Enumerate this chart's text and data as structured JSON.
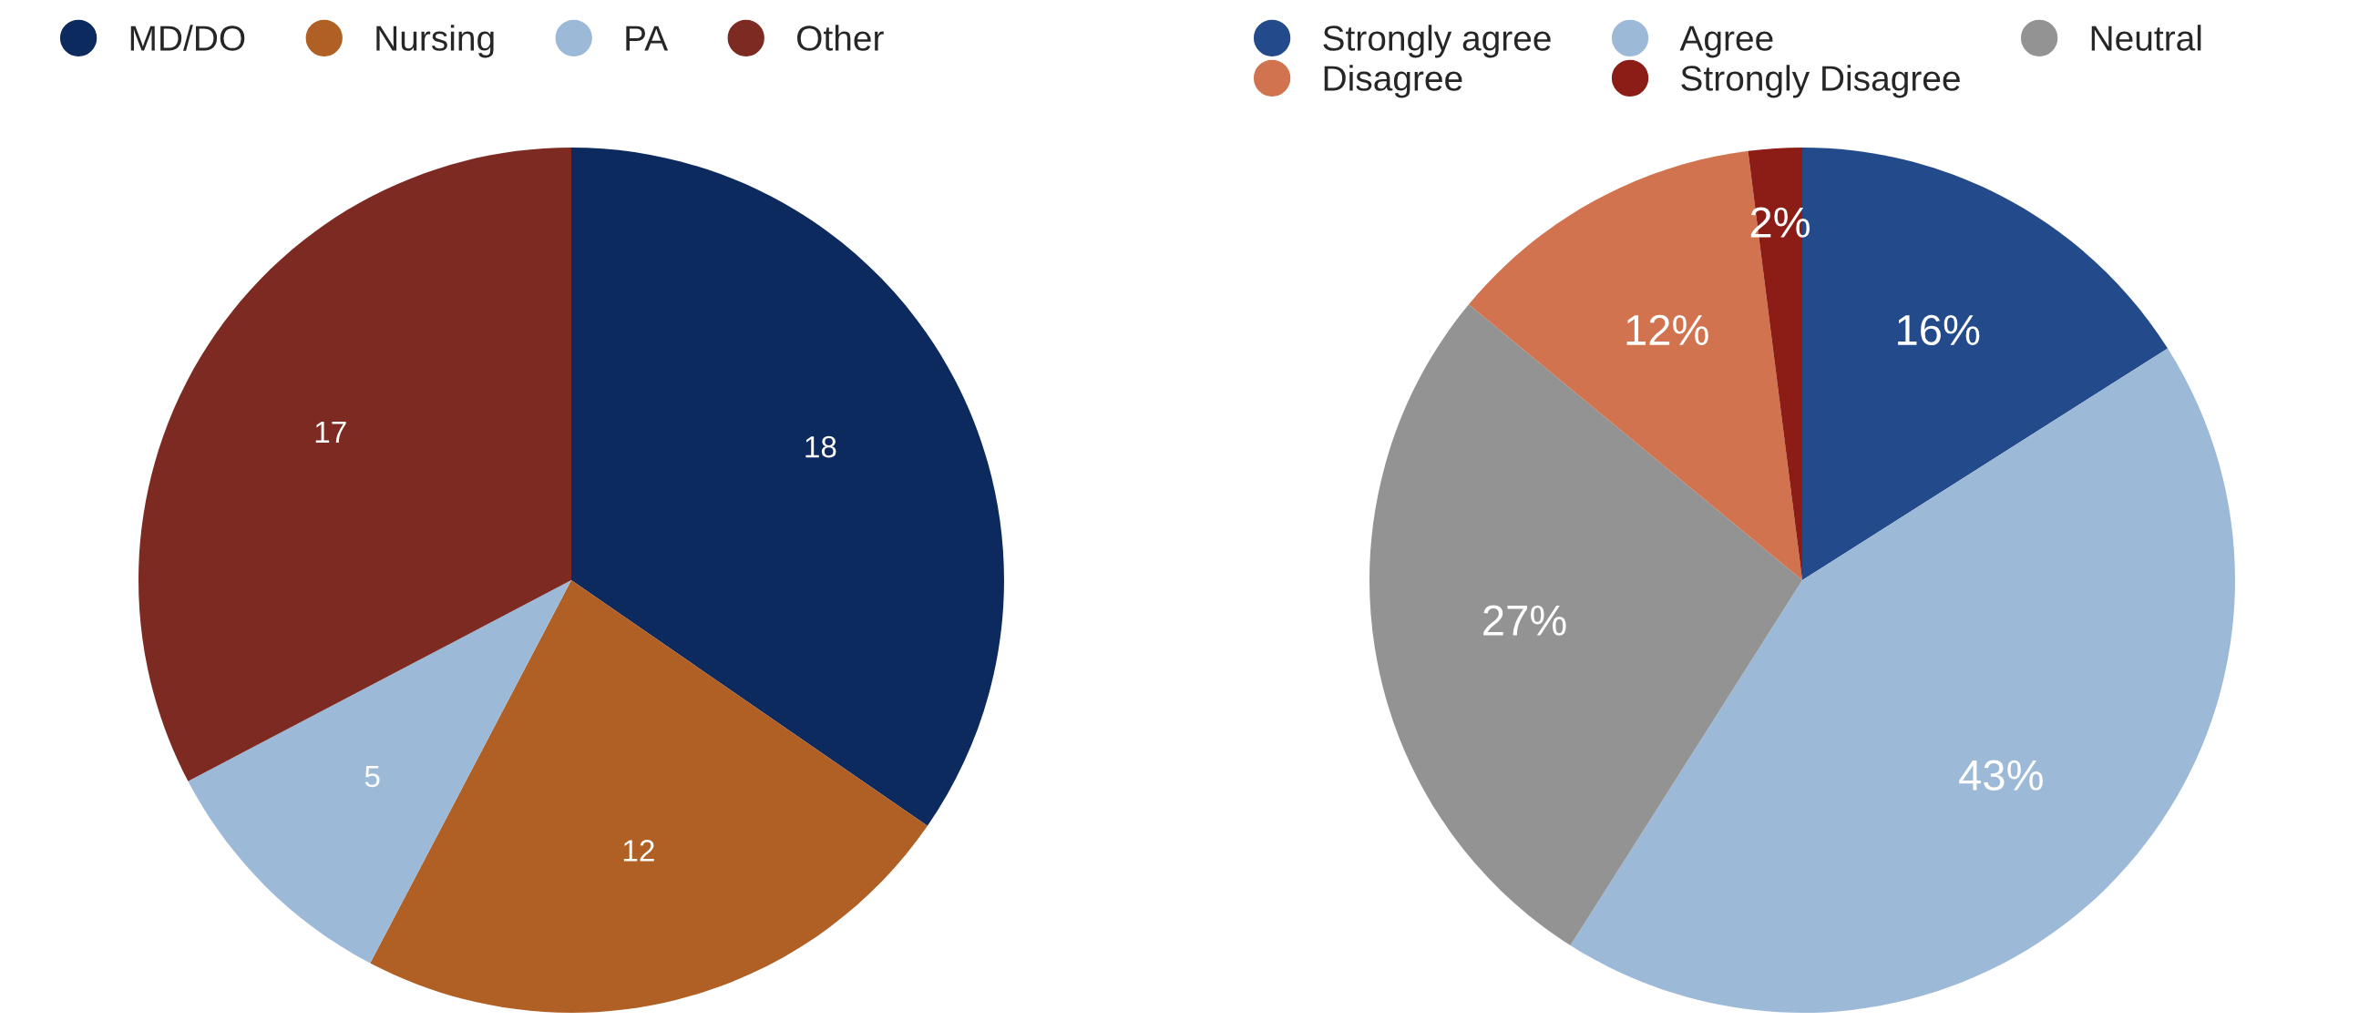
{
  "chart_data": [
    {
      "type": "pie",
      "categories": [
        "MD/DO",
        "Nursing",
        "PA",
        "Other"
      ],
      "values": [
        18,
        12,
        5,
        17
      ],
      "colors": [
        "#0d2a5e",
        "#b06025",
        "#9db9d8",
        "#7d2b22"
      ],
      "data_labels": true,
      "legend": "top"
    },
    {
      "type": "pie",
      "categories": [
        "Strongly agree",
        "Agree",
        "Neutral",
        "Disagree",
        "Strongly Disagree"
      ],
      "values": [
        16,
        43,
        27,
        12,
        2
      ],
      "colors": [
        "#234a8a",
        "#9db9d8",
        "#939393",
        "#d0734e",
        "#8b1c16"
      ],
      "value_labels": [
        "16%",
        "43%",
        "27%",
        "12%",
        "2%"
      ],
      "legend": "top"
    }
  ]
}
